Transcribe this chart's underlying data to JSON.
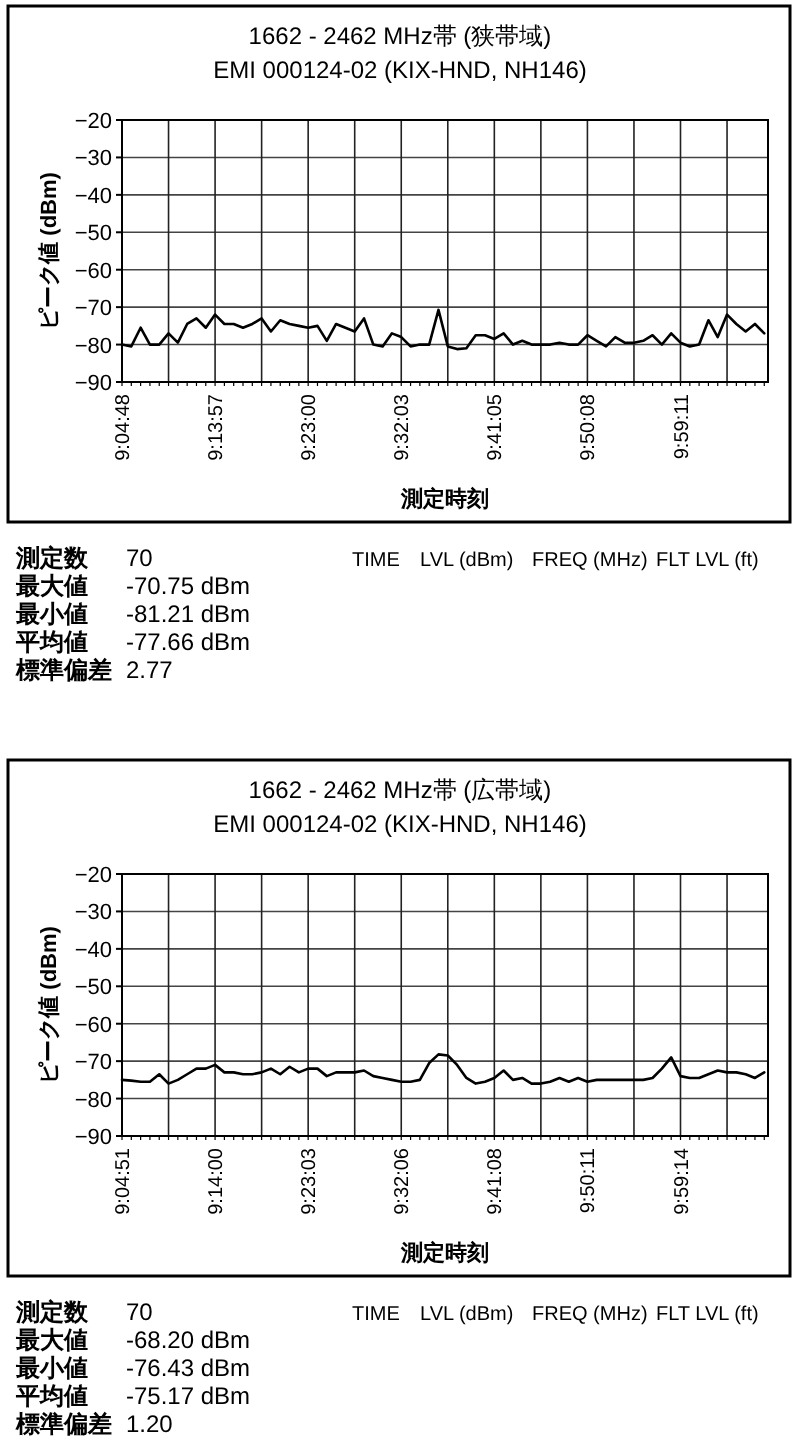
{
  "chart_data": [
    {
      "type": "line",
      "title": "1662 - 2462 MHz帯 (狭帯域)",
      "subtitle": "EMI 000124-02 (KIX-HND, NH146)",
      "xlabel": "測定時刻",
      "ylabel": "ピーク値 (dBm)",
      "categories": [
        "9:04:48",
        null,
        null,
        null,
        null,
        null,
        null,
        null,
        null,
        null,
        "9:13:57",
        null,
        null,
        null,
        null,
        null,
        null,
        null,
        null,
        null,
        "9:23:00",
        null,
        null,
        null,
        null,
        null,
        null,
        null,
        null,
        null,
        "9:32:03",
        null,
        null,
        null,
        null,
        null,
        null,
        null,
        null,
        null,
        "9:41:05",
        null,
        null,
        null,
        null,
        null,
        null,
        null,
        null,
        null,
        "9:50:08",
        null,
        null,
        null,
        null,
        null,
        null,
        null,
        null,
        null,
        "9:59:11",
        null,
        null,
        null,
        null,
        null,
        null,
        null,
        null,
        null
      ],
      "series": [
        {
          "color": "#000000",
          "values": [
            -80,
            -80.5,
            -75.5,
            -80,
            -80,
            -77,
            -79.5,
            -74.5,
            -73,
            -75.5,
            -72,
            -74.5,
            -74.5,
            -75.5,
            -74.5,
            -73,
            -76.5,
            -73.5,
            -74.5,
            -75,
            -75.5,
            -75,
            -79,
            -74.5,
            -75.5,
            -76.5,
            -73,
            -80,
            -80.5,
            -77,
            -78,
            -80.5,
            -80,
            -80,
            -70.75,
            -80.5,
            -81.21,
            -81,
            -77.5,
            -77.5,
            -78.5,
            -77,
            -80,
            -79,
            -80,
            -80,
            -80,
            -79.5,
            -80,
            -80,
            -77.5,
            -79,
            -80.5,
            -78,
            -79.5,
            -79.5,
            -79,
            -77.5,
            -80,
            -77,
            -79.5,
            -80.5,
            -80,
            -73.5,
            -78,
            -72,
            -74.5,
            -76.5,
            -74.5,
            -77
          ]
        }
      ],
      "ylim": [
        -90,
        -20
      ],
      "yticks": [
        -90,
        -80,
        -70,
        -60,
        -50,
        -40,
        -30,
        -20
      ],
      "grid": true,
      "annotations": [
        "測定数",
        "70",
        "最大値",
        "-70.75 dBm",
        "最小値",
        "-81.21 dBm",
        "平均値",
        "-77.66 dBm",
        "標準偏差",
        "2.77",
        "TIME",
        "LVL (dBm)",
        "FREQ (MHz)",
        "FLT LVL (ft)"
      ]
    },
    {
      "type": "line",
      "title": "1662 - 2462 MHz帯 (広帯域)",
      "subtitle": "EMI 000124-02 (KIX-HND, NH146)",
      "xlabel": "測定時刻",
      "ylabel": "ピーク値 (dBm)",
      "categories": [
        "9:04:51",
        null,
        null,
        null,
        null,
        null,
        null,
        null,
        null,
        null,
        "9:14:00",
        null,
        null,
        null,
        null,
        null,
        null,
        null,
        null,
        null,
        "9:23:03",
        null,
        null,
        null,
        null,
        null,
        null,
        null,
        null,
        null,
        "9:32:06",
        null,
        null,
        null,
        null,
        null,
        null,
        null,
        null,
        null,
        "9:41:08",
        null,
        null,
        null,
        null,
        null,
        null,
        null,
        null,
        null,
        "9:50:11",
        null,
        null,
        null,
        null,
        null,
        null,
        null,
        null,
        null,
        "9:59:14",
        null,
        null,
        null,
        null,
        null,
        null,
        null,
        null,
        null
      ],
      "series": [
        {
          "color": "#000000",
          "values": [
            -75,
            -75.2,
            -75.5,
            -75.5,
            -73.5,
            -76,
            -75,
            -73.5,
            -72,
            -72,
            -71,
            -73,
            -73,
            -73.5,
            -73.5,
            -73,
            -72,
            -73.5,
            -71.5,
            -73,
            -72,
            -72,
            -74,
            -73,
            -73,
            -73,
            -72.5,
            -74,
            -74.5,
            -75,
            -75.5,
            -75.5,
            -75,
            -70.5,
            -68.2,
            -68.5,
            -71,
            -74.5,
            -76,
            -75.5,
            -74.5,
            -72.5,
            -75,
            -74.5,
            -76,
            -76,
            -75.5,
            -74.5,
            -75.5,
            -74.5,
            -75.5,
            -75,
            -75,
            -75,
            -75,
            -75,
            -75,
            -74.5,
            -72,
            -69,
            -74,
            -74.5,
            -74.5,
            -73.5,
            -72.5,
            -73,
            -73,
            -73.5,
            -74.5,
            -73
          ]
        }
      ],
      "ylim": [
        -90,
        -20
      ],
      "yticks": [
        -90,
        -80,
        -70,
        -60,
        -50,
        -40,
        -30,
        -20
      ],
      "grid": true,
      "annotations": [
        "測定数",
        "70",
        "最大値",
        "-68.20 dBm",
        "最小値",
        "-76.43 dBm",
        "平均値",
        "-75.17 dBm",
        "標準偏差",
        "1.20",
        "TIME",
        "LVL (dBm)",
        "FREQ (MHz)",
        "FLT LVL (ft)"
      ]
    }
  ]
}
